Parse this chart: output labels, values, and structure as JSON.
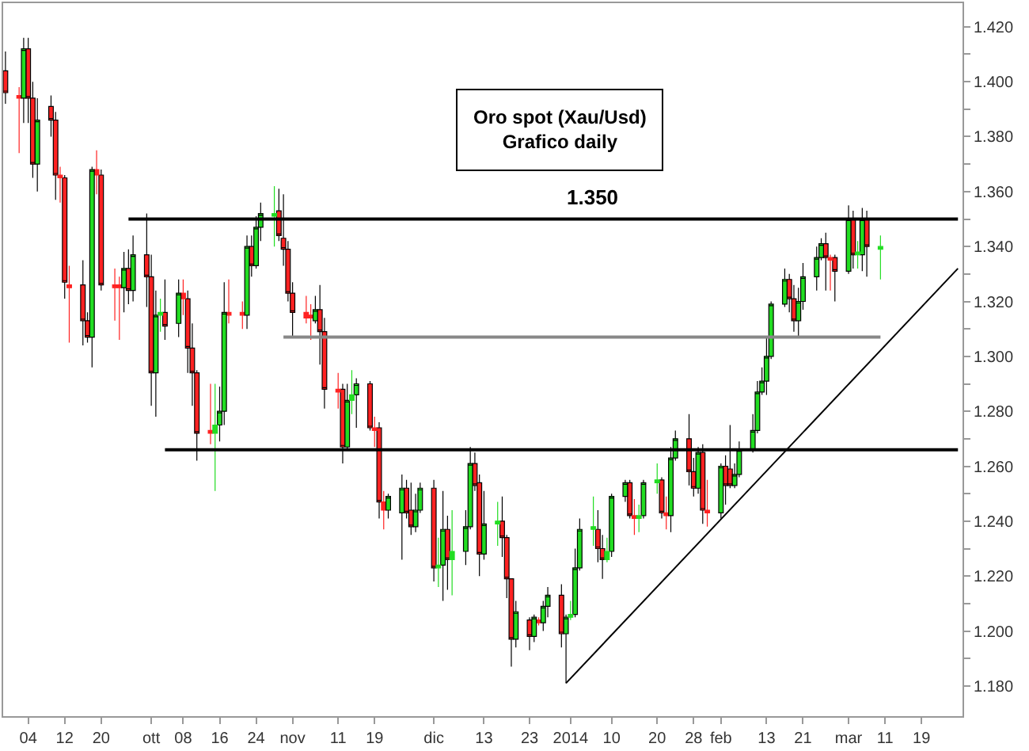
{
  "chart_data": {
    "type": "candlestick",
    "title": "Oro spot (Xau/Usd)\nGrafico daily",
    "x": [
      "2013-08-30",
      "2013-09-02",
      "2013-09-03",
      "2013-09-04",
      "2013-09-05",
      "2013-09-06",
      "2013-09-09",
      "2013-09-10",
      "2013-09-11",
      "2013-09-12",
      "2013-09-13",
      "2013-09-16",
      "2013-09-17",
      "2013-09-18",
      "2013-09-19",
      "2013-09-20",
      "2013-09-23",
      "2013-09-24",
      "2013-09-25",
      "2013-09-26",
      "2013-09-27",
      "2013-09-30",
      "2013-10-01",
      "2013-10-02",
      "2013-10-03",
      "2013-10-04",
      "2013-10-07",
      "2013-10-08",
      "2013-10-09",
      "2013-10-10",
      "2013-10-11",
      "2013-10-14",
      "2013-10-15",
      "2013-10-16",
      "2013-10-17",
      "2013-10-18",
      "2013-10-21",
      "2013-10-22",
      "2013-10-23",
      "2013-10-24",
      "2013-10-25",
      "2013-10-28",
      "2013-10-29",
      "2013-10-30",
      "2013-10-31",
      "2013-11-01",
      "2013-11-04",
      "2013-11-05",
      "2013-11-06",
      "2013-11-07",
      "2013-11-08",
      "2013-11-11",
      "2013-11-12",
      "2013-11-13",
      "2013-11-14",
      "2013-11-15",
      "2013-11-18",
      "2013-11-19",
      "2013-11-20",
      "2013-11-21",
      "2013-11-22",
      "2013-11-25",
      "2013-11-26",
      "2013-11-27",
      "2013-11-28",
      "2013-11-29",
      "2013-12-02",
      "2013-12-03",
      "2013-12-04",
      "2013-12-05",
      "2013-12-06",
      "2013-12-09",
      "2013-12-10",
      "2013-12-11",
      "2013-12-12",
      "2013-12-13",
      "2013-12-16",
      "2013-12-17",
      "2013-12-18",
      "2013-12-19",
      "2013-12-20",
      "2013-12-23",
      "2013-12-24",
      "2013-12-25",
      "2013-12-26",
      "2013-12-27",
      "2013-12-30",
      "2013-12-31",
      "2014-01-01",
      "2014-01-02",
      "2014-01-03",
      "2014-01-06",
      "2014-01-07",
      "2014-01-08",
      "2014-01-09",
      "2014-01-10",
      "2014-01-13",
      "2014-01-14",
      "2014-01-15",
      "2014-01-16",
      "2014-01-17",
      "2014-01-20",
      "2014-01-21",
      "2014-01-22",
      "2014-01-23",
      "2014-01-24",
      "2014-01-27",
      "2014-01-28",
      "2014-01-29",
      "2014-01-30",
      "2014-01-31",
      "2014-02-03",
      "2014-02-04",
      "2014-02-05",
      "2014-02-06",
      "2014-02-07",
      "2014-02-10",
      "2014-02-11",
      "2014-02-12",
      "2014-02-13",
      "2014-02-14",
      "2014-02-17",
      "2014-02-18",
      "2014-02-19",
      "2014-02-20",
      "2014-02-21",
      "2014-02-24",
      "2014-02-25",
      "2014-02-26",
      "2014-02-27",
      "2014-02-28",
      "2014-03-03",
      "2014-03-04",
      "2014-03-05",
      "2014-03-06",
      "2014-03-07",
      "2014-03-10"
    ],
    "ohlc": [
      [
        1.404,
        1.411,
        1.392,
        1.396
      ],
      [
        1.395,
        1.398,
        1.374,
        1.394
      ],
      [
        1.394,
        1.416,
        1.385,
        1.412
      ],
      [
        1.412,
        1.416,
        1.385,
        1.394
      ],
      [
        1.394,
        1.4,
        1.365,
        1.37
      ],
      [
        1.37,
        1.394,
        1.36,
        1.386
      ],
      [
        1.391,
        1.395,
        1.38,
        1.386
      ],
      [
        1.386,
        1.389,
        1.357,
        1.366
      ],
      [
        1.366,
        1.369,
        1.356,
        1.365
      ],
      [
        1.365,
        1.366,
        1.321,
        1.327
      ],
      [
        1.326,
        1.333,
        1.305,
        1.325
      ],
      [
        1.326,
        1.335,
        1.304,
        1.313
      ],
      [
        1.313,
        1.316,
        1.305,
        1.307
      ],
      [
        1.307,
        1.369,
        1.296,
        1.368
      ],
      [
        1.368,
        1.375,
        1.359,
        1.366
      ],
      [
        1.366,
        1.368,
        1.324,
        1.326
      ],
      [
        1.326,
        1.332,
        1.313,
        1.325
      ],
      [
        1.326,
        1.329,
        1.306,
        1.325
      ],
      [
        1.325,
        1.338,
        1.316,
        1.332
      ],
      [
        1.332,
        1.339,
        1.319,
        1.324
      ],
      [
        1.324,
        1.344,
        1.32,
        1.337
      ],
      [
        1.337,
        1.352,
        1.318,
        1.329
      ],
      [
        1.329,
        1.337,
        1.282,
        1.294
      ],
      [
        1.294,
        1.324,
        1.278,
        1.315
      ],
      [
        1.315,
        1.321,
        1.309,
        1.316
      ],
      [
        1.316,
        1.328,
        1.306,
        1.311
      ],
      [
        1.312,
        1.328,
        1.307,
        1.323
      ],
      [
        1.323,
        1.328,
        1.315,
        1.321
      ],
      [
        1.321,
        1.324,
        1.294,
        1.303
      ],
      [
        1.303,
        1.312,
        1.282,
        1.294
      ],
      [
        1.294,
        1.295,
        1.262,
        1.272
      ],
      [
        1.273,
        1.29,
        1.268,
        1.272
      ],
      [
        1.272,
        1.29,
        1.251,
        1.275
      ],
      [
        1.275,
        1.289,
        1.269,
        1.28
      ],
      [
        1.28,
        1.327,
        1.275,
        1.316
      ],
      [
        1.316,
        1.328,
        1.312,
        1.315
      ],
      [
        1.316,
        1.32,
        1.31,
        1.315
      ],
      [
        1.315,
        1.344,
        1.31,
        1.34
      ],
      [
        1.34,
        1.344,
        1.329,
        1.333
      ],
      [
        1.333,
        1.351,
        1.332,
        1.347
      ],
      [
        1.347,
        1.356,
        1.342,
        1.352
      ],
      [
        1.351,
        1.362,
        1.34,
        1.352
      ],
      [
        1.353,
        1.361,
        1.342,
        1.344
      ],
      [
        1.343,
        1.359,
        1.333,
        1.339
      ],
      [
        1.339,
        1.342,
        1.32,
        1.323
      ],
      [
        1.323,
        1.327,
        1.307,
        1.316
      ],
      [
        1.316,
        1.322,
        1.312,
        1.314
      ],
      [
        1.315,
        1.319,
        1.306,
        1.314
      ],
      [
        1.313,
        1.322,
        1.312,
        1.317
      ],
      [
        1.317,
        1.326,
        1.297,
        1.309
      ],
      [
        1.309,
        1.314,
        1.281,
        1.288
      ],
      [
        1.288,
        1.294,
        1.281,
        1.287
      ],
      [
        1.288,
        1.29,
        1.261,
        1.267
      ],
      [
        1.267,
        1.29,
        1.266,
        1.284
      ],
      [
        1.284,
        1.295,
        1.279,
        1.286
      ],
      [
        1.286,
        1.292,
        1.274,
        1.29
      ],
      [
        1.29,
        1.291,
        1.273,
        1.274
      ],
      [
        1.274,
        1.278,
        1.267,
        1.273
      ],
      [
        1.274,
        1.276,
        1.241,
        1.247
      ],
      [
        1.247,
        1.251,
        1.237,
        1.244
      ],
      [
        1.244,
        1.25,
        1.241,
        1.249
      ],
      [
        1.243,
        1.257,
        1.226,
        1.252
      ],
      [
        1.252,
        1.255,
        1.241,
        1.243
      ],
      [
        1.244,
        1.254,
        1.235,
        1.238
      ],
      [
        1.238,
        1.25,
        1.236,
        1.244
      ],
      [
        1.244,
        1.254,
        1.243,
        1.252
      ],
      [
        1.252,
        1.255,
        1.218,
        1.223
      ],
      [
        1.223,
        1.234,
        1.216,
        1.224
      ],
      [
        1.224,
        1.251,
        1.211,
        1.237
      ],
      [
        1.237,
        1.242,
        1.215,
        1.226
      ],
      [
        1.226,
        1.244,
        1.213,
        1.229
      ],
      [
        1.229,
        1.244,
        1.224,
        1.238
      ],
      [
        1.238,
        1.267,
        1.237,
        1.261
      ],
      [
        1.261,
        1.265,
        1.251,
        1.253
      ],
      [
        1.254,
        1.257,
        1.22,
        1.228
      ],
      [
        1.228,
        1.251,
        1.226,
        1.239
      ],
      [
        1.239,
        1.247,
        1.231,
        1.24
      ],
      [
        1.24,
        1.249,
        1.227,
        1.234
      ],
      [
        1.234,
        1.235,
        1.212,
        1.219
      ],
      [
        1.219,
        1.219,
        1.187,
        1.197
      ],
      [
        1.197,
        1.211,
        1.194,
        1.207
      ],
      [
        1.204,
        1.205,
        1.193,
        1.198
      ],
      [
        1.198,
        1.206,
        1.196,
        1.205
      ],
      [
        1.204,
        1.205,
        1.202,
        1.203
      ],
      [
        1.203,
        1.211,
        1.2,
        1.209
      ],
      [
        1.209,
        1.216,
        1.205,
        1.213
      ],
      [
        1.213,
        1.217,
        1.194,
        1.199
      ],
      [
        1.199,
        1.206,
        1.181,
        1.205
      ],
      [
        1.205,
        1.211,
        1.204,
        1.206
      ],
      [
        1.206,
        1.23,
        1.205,
        1.223
      ],
      [
        1.223,
        1.241,
        1.222,
        1.237
      ],
      [
        1.237,
        1.249,
        1.231,
        1.238
      ],
      [
        1.237,
        1.244,
        1.225,
        1.23
      ],
      [
        1.23,
        1.235,
        1.219,
        1.226
      ],
      [
        1.226,
        1.234,
        1.225,
        1.229
      ],
      [
        1.229,
        1.25,
        1.227,
        1.249
      ],
      [
        1.249,
        1.255,
        1.247,
        1.254
      ],
      [
        1.254,
        1.255,
        1.241,
        1.242
      ],
      [
        1.242,
        1.248,
        1.235,
        1.241
      ],
      [
        1.241,
        1.246,
        1.236,
        1.242
      ],
      [
        1.242,
        1.255,
        1.241,
        1.254
      ],
      [
        1.254,
        1.261,
        1.25,
        1.255
      ],
      [
        1.255,
        1.256,
        1.241,
        1.243
      ],
      [
        1.243,
        1.249,
        1.237,
        1.242
      ],
      [
        1.242,
        1.267,
        1.236,
        1.263
      ],
      [
        1.263,
        1.273,
        1.262,
        1.27
      ],
      [
        1.27,
        1.279,
        1.253,
        1.258
      ],
      [
        1.258,
        1.263,
        1.249,
        1.252
      ],
      [
        1.252,
        1.267,
        1.25,
        1.265
      ],
      [
        1.265,
        1.268,
        1.239,
        1.244
      ],
      [
        1.244,
        1.255,
        1.238,
        1.243
      ],
      [
        1.243,
        1.261,
        1.241,
        1.26
      ],
      [
        1.26,
        1.264,
        1.246,
        1.253
      ],
      [
        1.259,
        1.275,
        1.252,
        1.253
      ],
      [
        1.253,
        1.261,
        1.252,
        1.257
      ],
      [
        1.257,
        1.269,
        1.256,
        1.266
      ],
      [
        1.266,
        1.279,
        1.265,
        1.273
      ],
      [
        1.273,
        1.291,
        1.272,
        1.287
      ],
      [
        1.287,
        1.296,
        1.286,
        1.291
      ],
      [
        1.291,
        1.307,
        1.286,
        1.3
      ],
      [
        1.3,
        1.32,
        1.299,
        1.319
      ],
      [
        1.319,
        1.332,
        1.318,
        1.328
      ],
      [
        1.328,
        1.33,
        1.316,
        1.321
      ],
      [
        1.321,
        1.326,
        1.309,
        1.313
      ],
      [
        1.313,
        1.325,
        1.307,
        1.32
      ],
      [
        1.32,
        1.334,
        1.317,
        1.329
      ],
      [
        1.329,
        1.34,
        1.324,
        1.336
      ],
      [
        1.336,
        1.343,
        1.335,
        1.341
      ],
      [
        1.341,
        1.345,
        1.324,
        1.336
      ],
      [
        1.336,
        1.337,
        1.324,
        1.335
      ],
      [
        1.336,
        1.337,
        1.32,
        1.331
      ],
      [
        1.331,
        1.355,
        1.33,
        1.35
      ],
      [
        1.35,
        1.353,
        1.332,
        1.337
      ],
      [
        1.337,
        1.342,
        1.332,
        1.338
      ],
      [
        1.337,
        1.354,
        1.331,
        1.35
      ],
      [
        1.35,
        1.353,
        1.329,
        1.34
      ],
      [
        1.339,
        1.344,
        1.328,
        1.34
      ]
    ],
    "colors": [
      "#ff2222",
      "#ff2222",
      "#22dd22",
      "#ff2222",
      "#ff2222",
      "#22dd22",
      "#ff2222",
      "#ff2222",
      "#ff2222",
      "#ff2222",
      "#ff2222",
      "#ff2222",
      "#ff2222",
      "#22dd22",
      "#ff2222",
      "#ff2222",
      "#ff2222",
      "#ff2222",
      "#22dd22",
      "#ff2222",
      "#22dd22",
      "#ff2222",
      "#ff2222",
      "#22dd22",
      "#22dd22",
      "#ff2222",
      "#22dd22",
      "#ff2222",
      "#ff2222",
      "#ff2222",
      "#ff2222",
      "#ff2222",
      "#22dd22",
      "#22dd22",
      "#22dd22",
      "#ff2222",
      "#ff2222",
      "#22dd22",
      "#ff2222",
      "#22dd22",
      "#22dd22",
      "#22dd22",
      "#ff2222",
      "#ff2222",
      "#ff2222",
      "#ff2222",
      "#ff2222",
      "#ff2222",
      "#22dd22",
      "#ff2222",
      "#ff2222",
      "#ff2222",
      "#ff2222",
      "#22dd22",
      "#22dd22",
      "#22dd22",
      "#ff2222",
      "#ff2222",
      "#ff2222",
      "#ff2222",
      "#22dd22",
      "#22dd22",
      "#ff2222",
      "#ff2222",
      "#22dd22",
      "#22dd22",
      "#ff2222",
      "#22dd22",
      "#22dd22",
      "#ff2222",
      "#22dd22",
      "#22dd22",
      "#22dd22",
      "#ff2222",
      "#ff2222",
      "#22dd22",
      "#22dd22",
      "#ff2222",
      "#ff2222",
      "#ff2222",
      "#22dd22",
      "#ff2222",
      "#22dd22",
      "#ff2222",
      "#22dd22",
      "#22dd22",
      "#ff2222",
      "#22dd22",
      "#22dd22",
      "#22dd22",
      "#22dd22",
      "#22dd22",
      "#ff2222",
      "#ff2222",
      "#22dd22",
      "#22dd22",
      "#22dd22",
      "#ff2222",
      "#ff2222",
      "#22dd22",
      "#22dd22",
      "#22dd22",
      "#ff2222",
      "#ff2222",
      "#22dd22",
      "#22dd22",
      "#ff2222",
      "#ff2222",
      "#22dd22",
      "#ff2222",
      "#ff2222",
      "#22dd22",
      "#ff2222",
      "#ff2222",
      "#22dd22",
      "#22dd22",
      "#22dd22",
      "#22dd22",
      "#22dd22",
      "#22dd22",
      "#22dd22",
      "#22dd22",
      "#ff2222",
      "#ff2222",
      "#22dd22",
      "#22dd22",
      "#22dd22",
      "#22dd22",
      "#ff2222",
      "#ff2222",
      "#ff2222",
      "#22dd22",
      "#ff2222",
      "#22dd22",
      "#22dd22",
      "#ff2222",
      "#22dd22"
    ],
    "series": [
      {
        "type": "line",
        "color": "#000000",
        "x": [
          "2013-09-26",
          "2014-03-27"
        ],
        "values": [
          1.35,
          1.35
        ]
      },
      {
        "type": "line",
        "color": "#000000",
        "x": [
          "2013-10-04",
          "2014-03-27"
        ],
        "values": [
          1.266,
          1.266
        ]
      },
      {
        "type": "line",
        "color": "#888888",
        "x": [
          "2013-10-30",
          "2014-03-10"
        ],
        "values": [
          1.307,
          1.307
        ]
      },
      {
        "type": "line",
        "color": "#000000",
        "x": [
          "2013-12-31",
          "2014-03-27"
        ],
        "values": [
          1.181,
          1.332
        ]
      }
    ],
    "annotations": [
      {
        "text": "1.350",
        "x": "2014-01-06",
        "y": 1.35
      }
    ],
    "xlim": [
      "2013-08-29T12:00",
      "2014-03-28"
    ],
    "xticks": [
      {
        "value": "2013-09-04",
        "label": "04"
      },
      {
        "value": "2013-09-12",
        "label": "12"
      },
      {
        "value": "2013-09-20",
        "label": "20"
      },
      {
        "value": "2013-10-01",
        "label": "ott"
      },
      {
        "value": "2013-10-08",
        "label": "08"
      },
      {
        "value": "2013-10-16",
        "label": "16"
      },
      {
        "value": "2013-10-24",
        "label": "24"
      },
      {
        "value": "2013-11-01",
        "label": "nov"
      },
      {
        "value": "2013-11-11",
        "label": "11"
      },
      {
        "value": "2013-11-19",
        "label": "19"
      },
      {
        "value": "2013-12-02",
        "label": "dic"
      },
      {
        "value": "2013-12-13",
        "label": "13"
      },
      {
        "value": "2013-12-23",
        "label": "23"
      },
      {
        "value": "2014-01-01",
        "label": "2014"
      },
      {
        "value": "2014-01-10",
        "label": "10"
      },
      {
        "value": "2014-01-20",
        "label": "20"
      },
      {
        "value": "2014-01-28",
        "label": "28"
      },
      {
        "value": "2014-02-03",
        "label": "feb"
      },
      {
        "value": "2014-02-13",
        "label": "13"
      },
      {
        "value": "2014-02-21",
        "label": "21"
      },
      {
        "value": "2014-03-03",
        "label": "mar"
      },
      {
        "value": "2014-03-11",
        "label": "11"
      },
      {
        "value": "2014-03-19",
        "label": "19"
      }
    ],
    "ylim": [
      1.169,
      1.4286
    ],
    "yticks": [
      {
        "value": 1.18,
        "label": "1.180"
      },
      {
        "value": 1.19,
        "label": null
      },
      {
        "value": 1.2,
        "label": "1.200"
      },
      {
        "value": 1.21,
        "label": null
      },
      {
        "value": 1.22,
        "label": "1.220"
      },
      {
        "value": 1.23,
        "label": null
      },
      {
        "value": 1.24,
        "label": "1.240"
      },
      {
        "value": 1.25,
        "label": null
      },
      {
        "value": 1.26,
        "label": "1.260"
      },
      {
        "value": 1.27,
        "label": null
      },
      {
        "value": 1.28,
        "label": "1.280"
      },
      {
        "value": 1.29,
        "label": null
      },
      {
        "value": 1.3,
        "label": "1.300"
      },
      {
        "value": 1.31,
        "label": null
      },
      {
        "value": 1.32,
        "label": "1.320"
      },
      {
        "value": 1.33,
        "label": null
      },
      {
        "value": 1.34,
        "label": "1.340"
      },
      {
        "value": 1.35,
        "label": null
      },
      {
        "value": 1.36,
        "label": "1.360"
      },
      {
        "value": 1.37,
        "label": null
      },
      {
        "value": 1.38,
        "label": "1.380"
      },
      {
        "value": 1.39,
        "label": null
      },
      {
        "value": 1.4,
        "label": "1.400"
      },
      {
        "value": 1.41,
        "label": null
      },
      {
        "value": 1.42,
        "label": "1.420"
      }
    ]
  }
}
